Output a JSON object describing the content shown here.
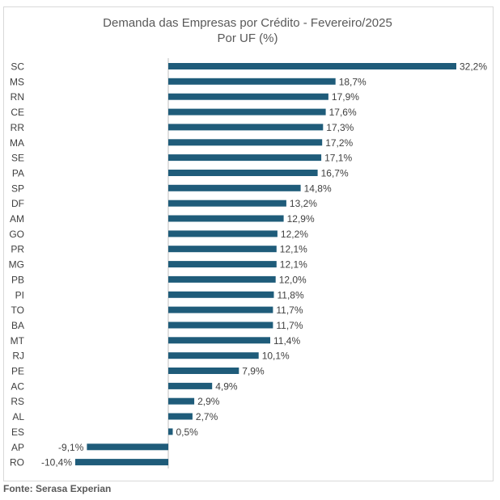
{
  "chart_data": {
    "type": "bar",
    "orientation": "horizontal",
    "title": "Demanda das Empresas por Crédito - Fevereiro/2025",
    "subtitle": "Por UF (%)",
    "categories": [
      "SC",
      "MS",
      "RN",
      "CE",
      "RR",
      "MA",
      "SE",
      "PA",
      "SP",
      "DF",
      "AM",
      "GO",
      "PR",
      "MG",
      "PB",
      "PI",
      "TO",
      "BA",
      "MT",
      "RJ",
      "PE",
      "AC",
      "RS",
      "AL",
      "ES",
      "AP",
      "RO"
    ],
    "values": [
      32.2,
      18.7,
      17.9,
      17.6,
      17.3,
      17.2,
      17.1,
      16.7,
      14.8,
      13.2,
      12.9,
      12.2,
      12.1,
      12.1,
      12.0,
      11.8,
      11.7,
      11.7,
      11.4,
      10.1,
      7.9,
      4.9,
      2.9,
      2.7,
      0.5,
      -9.1,
      -10.4
    ],
    "value_labels": [
      "32,2%",
      "18,7%",
      "17,9%",
      "17,6%",
      "17,3%",
      "17,2%",
      "17,1%",
      "16,7%",
      "14,8%",
      "13,2%",
      "12,9%",
      "12,2%",
      "12,1%",
      "12,1%",
      "12,0%",
      "11,8%",
      "11,7%",
      "11,7%",
      "11,4%",
      "10,1%",
      "7,9%",
      "4,9%",
      "2,9%",
      "2,7%",
      "0,5%",
      "-9,1%",
      "-10,4%"
    ],
    "bar_color": "#1f5c7a",
    "grid": false,
    "legend": "none"
  },
  "source": "Fonte: Serasa Experian"
}
